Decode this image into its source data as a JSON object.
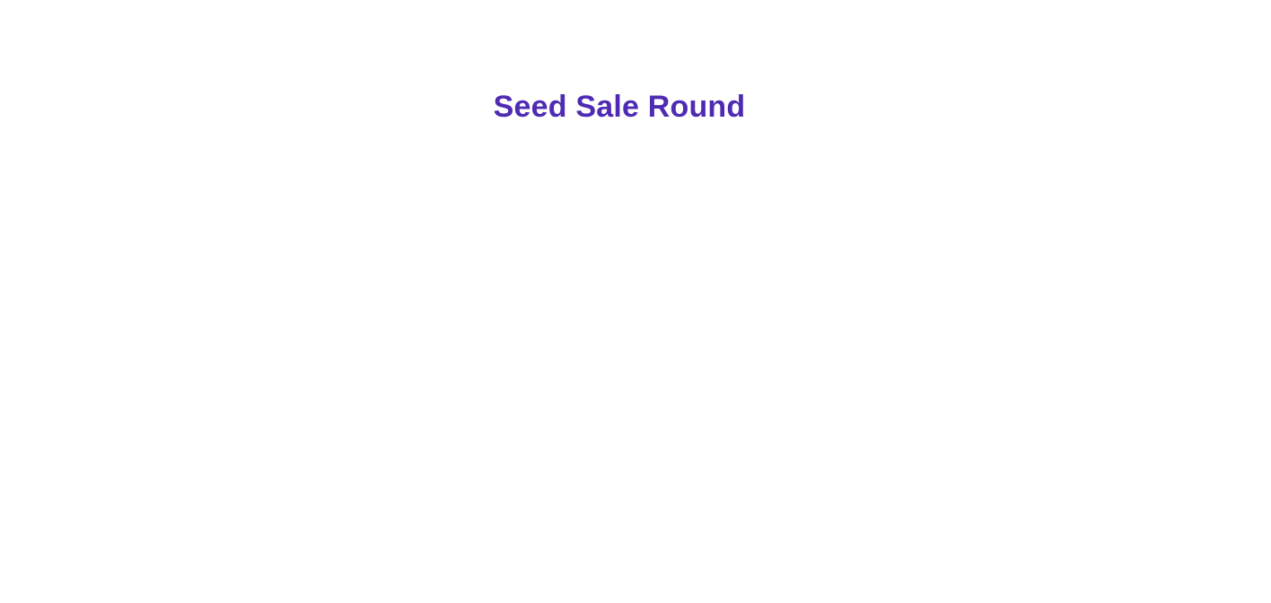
{
  "page": {
    "title": "Seed Sale Round"
  },
  "colors": {
    "title": "#4f2bb4",
    "background": "#ffffff"
  }
}
